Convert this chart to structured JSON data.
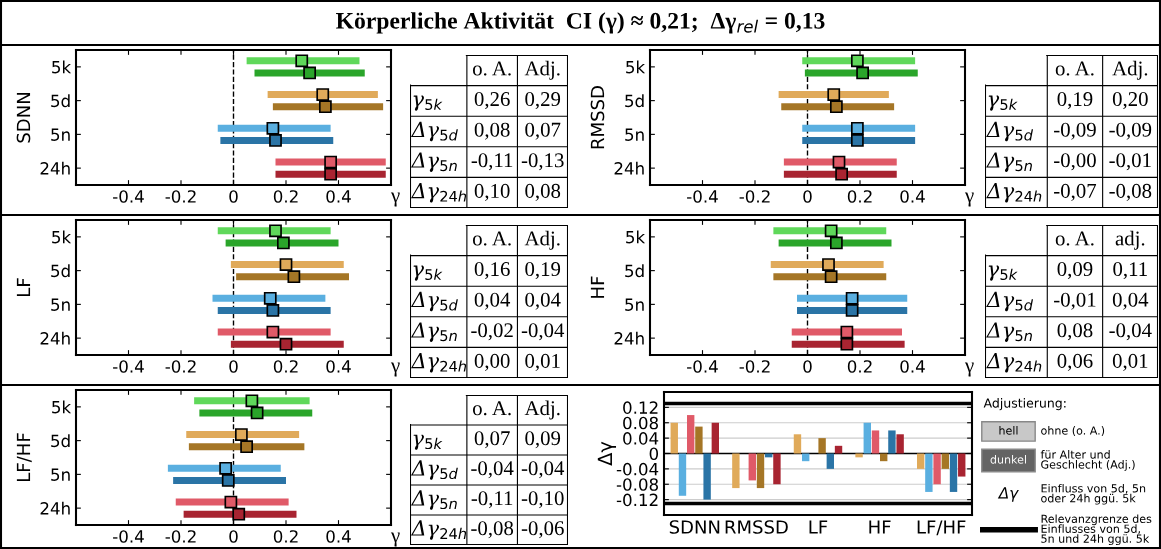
{
  "chart_data": [
    {
      "type": "scatter",
      "orientation": "horizontal",
      "title": "Körperliche Aktivität  CI (γ) ≈ 0,21;  Δγ$_{rel}$ = 0,13",
      "ylabel": "SDNN",
      "xlabel": "γ",
      "categories": [
        "5k",
        "5d",
        "5n",
        "24h"
      ],
      "xlim": [
        -0.6,
        0.6
      ],
      "xticks": [
        -0.4,
        -0.2,
        0,
        0.2,
        0.4
      ],
      "marker": "square",
      "ref_lines": [
        {
          "axis": "x",
          "value": 0,
          "line_style": "dashed",
          "color": "#000000"
        }
      ],
      "series": [
        {
          "colors": [
            "#5fd85a",
            "#e0aa5a",
            "#5aafe0",
            "#e05a68"
          ],
          "values": [
            0.26,
            0.34,
            0.15,
            0.37
          ],
          "errors": [
            [
              0.05,
              0.48
            ],
            [
              0.13,
              0.55
            ],
            [
              -0.06,
              0.37
            ],
            [
              0.16,
              0.58
            ]
          ]
        },
        {
          "colors": [
            "#2aa52a",
            "#a57626",
            "#2a74a6",
            "#a82431"
          ],
          "values": [
            0.29,
            0.35,
            0.16,
            0.37
          ],
          "errors": [
            [
              0.08,
              0.5
            ],
            [
              0.15,
              0.57
            ],
            [
              -0.05,
              0.38
            ],
            [
              0.16,
              0.58
            ]
          ]
        }
      ]
    },
    {
      "type": "other",
      "categories": [
        "o. A.",
        "Adj."
      ],
      "y_categories": [
        "γ$_{5k}$",
        "Δγ$_{5d}$",
        "Δγ$_{5n}$",
        "Δγ$_{24h}$"
      ],
      "cell_labels": [
        [
          "0,26",
          "0,29"
        ],
        [
          "0,08",
          "0,07"
        ],
        [
          "-0,11",
          "-0,13"
        ],
        [
          "0,10",
          "0,08"
        ]
      ]
    },
    {
      "type": "scatter",
      "orientation": "horizontal",
      "ylabel": "RMSSD",
      "xlabel": "γ",
      "categories": [
        "5k",
        "5d",
        "5n",
        "24h"
      ],
      "xlim": [
        -0.6,
        0.6
      ],
      "xticks": [
        -0.4,
        -0.2,
        0,
        0.2,
        0.4
      ],
      "marker": "square",
      "ref_lines": [
        {
          "axis": "x",
          "value": 0,
          "line_style": "dashed",
          "color": "#000000"
        }
      ],
      "series": [
        {
          "colors": [
            "#5fd85a",
            "#e0aa5a",
            "#5aafe0",
            "#e05a68"
          ],
          "values": [
            0.19,
            0.1,
            0.19,
            0.12
          ],
          "errors": [
            [
              -0.02,
              0.41
            ],
            [
              -0.11,
              0.31
            ],
            [
              -0.02,
              0.41
            ],
            [
              -0.09,
              0.34
            ]
          ]
        },
        {
          "colors": [
            "#2aa52a",
            "#a57626",
            "#2a74a6",
            "#a82431"
          ],
          "values": [
            0.21,
            0.11,
            0.19,
            0.13
          ],
          "errors": [
            [
              -0.01,
              0.42
            ],
            [
              -0.1,
              0.33
            ],
            [
              -0.02,
              0.41
            ],
            [
              -0.09,
              0.34
            ]
          ]
        }
      ]
    },
    {
      "type": "other",
      "categories": [
        "o. A.",
        "Adj."
      ],
      "y_categories": [
        "γ$_{5k}$",
        "Δγ$_{5d}$",
        "Δγ$_{5n}$",
        "Δγ$_{24h}$"
      ],
      "cell_labels": [
        [
          "0,19",
          "0,20"
        ],
        [
          "-0,09",
          "-0,09"
        ],
        [
          "-0,00",
          "-0,01"
        ],
        [
          "-0,07",
          "-0,08"
        ]
      ]
    },
    {
      "type": "scatter",
      "orientation": "horizontal",
      "ylabel": "LF",
      "xlabel": "γ",
      "categories": [
        "5k",
        "5d",
        "5n",
        "24h"
      ],
      "xlim": [
        -0.6,
        0.6
      ],
      "xticks": [
        -0.4,
        -0.2,
        0,
        0.2,
        0.4
      ],
      "marker": "square",
      "ref_lines": [
        {
          "axis": "x",
          "value": 0,
          "line_style": "dashed",
          "color": "#000000"
        }
      ],
      "series": [
        {
          "colors": [
            "#5fd85a",
            "#e0aa5a",
            "#5aafe0",
            "#e05a68"
          ],
          "values": [
            0.16,
            0.2,
            0.14,
            0.15
          ],
          "errors": [
            [
              -0.06,
              0.37
            ],
            [
              -0.01,
              0.42
            ],
            [
              -0.08,
              0.35
            ],
            [
              -0.06,
              0.37
            ]
          ]
        },
        {
          "colors": [
            "#2aa52a",
            "#a57626",
            "#2a74a6",
            "#a82431"
          ],
          "values": [
            0.19,
            0.23,
            0.15,
            0.2
          ],
          "errors": [
            [
              -0.03,
              0.4
            ],
            [
              0.01,
              0.44
            ],
            [
              -0.06,
              0.37
            ],
            [
              -0.01,
              0.42
            ]
          ]
        }
      ]
    },
    {
      "type": "other",
      "categories": [
        "o. A.",
        "Adj."
      ],
      "y_categories": [
        "γ$_{5k}$",
        "Δγ$_{5d}$",
        "Δγ$_{5n}$",
        "Δγ$_{24h}$"
      ],
      "cell_labels": [
        [
          "0,16",
          "0,19"
        ],
        [
          "0,04",
          "0,04"
        ],
        [
          "-0,02",
          "-0,04"
        ],
        [
          "0,00",
          "0,01"
        ]
      ]
    },
    {
      "type": "scatter",
      "orientation": "horizontal",
      "ylabel": "HF",
      "xlabel": "γ",
      "categories": [
        "5k",
        "5d",
        "5n",
        "24h"
      ],
      "xlim": [
        -0.6,
        0.6
      ],
      "xticks": [
        -0.4,
        -0.2,
        0,
        0.2,
        0.4
      ],
      "marker": "square",
      "ref_lines": [
        {
          "axis": "x",
          "value": 0,
          "line_style": "dashed",
          "color": "#000000"
        }
      ],
      "series": [
        {
          "colors": [
            "#5fd85a",
            "#e0aa5a",
            "#5aafe0",
            "#e05a68"
          ],
          "values": [
            0.09,
            0.08,
            0.17,
            0.15
          ],
          "errors": [
            [
              -0.13,
              0.3
            ],
            [
              -0.14,
              0.29
            ],
            [
              -0.04,
              0.38
            ],
            [
              -0.06,
              0.36
            ]
          ]
        },
        {
          "colors": [
            "#2aa52a",
            "#a57626",
            "#2a74a6",
            "#a82431"
          ],
          "values": [
            0.11,
            0.09,
            0.17,
            0.15
          ],
          "errors": [
            [
              -0.11,
              0.32
            ],
            [
              -0.13,
              0.3
            ],
            [
              -0.04,
              0.38
            ],
            [
              -0.06,
              0.37
            ]
          ]
        }
      ]
    },
    {
      "type": "other",
      "categories": [
        "o. A.",
        "adj."
      ],
      "y_categories": [
        "γ$_{5k}$",
        "Δγ$_{5d}$",
        "Δγ$_{5n}$",
        "Δγ$_{24h}$"
      ],
      "cell_labels": [
        [
          "0,09",
          "0,11"
        ],
        [
          "-0,01",
          "0,04"
        ],
        [
          "0,08",
          "-0,04"
        ],
        [
          "0,06",
          "0,01"
        ]
      ]
    },
    {
      "type": "scatter",
      "orientation": "horizontal",
      "ylabel": "LF/HF",
      "xlabel": "γ",
      "categories": [
        "5k",
        "5d",
        "5n",
        "24h"
      ],
      "xlim": [
        -0.6,
        0.6
      ],
      "xticks": [
        -0.4,
        -0.2,
        0,
        0.2,
        0.4
      ],
      "marker": "square",
      "ref_lines": [
        {
          "axis": "x",
          "value": 0,
          "line_style": "dashed",
          "color": "#000000"
        }
      ],
      "series": [
        {
          "colors": [
            "#5fd85a",
            "#e0aa5a",
            "#5aafe0",
            "#e05a68"
          ],
          "values": [
            0.07,
            0.03,
            -0.03,
            -0.01
          ],
          "errors": [
            [
              -0.15,
              0.29
            ],
            [
              -0.18,
              0.25
            ],
            [
              -0.25,
              0.18
            ],
            [
              -0.22,
              0.21
            ]
          ]
        },
        {
          "colors": [
            "#2aa52a",
            "#a57626",
            "#2a74a6",
            "#a82431"
          ],
          "values": [
            0.09,
            0.05,
            -0.02,
            0.02
          ],
          "errors": [
            [
              -0.13,
              0.3
            ],
            [
              -0.17,
              0.27
            ],
            [
              -0.23,
              0.2
            ],
            [
              -0.19,
              0.24
            ]
          ]
        }
      ]
    },
    {
      "type": "other",
      "categories": [
        "o. A.",
        "Adj."
      ],
      "y_categories": [
        "γ$_{5k}$",
        "Δγ$_{5d}$",
        "Δγ$_{5n}$",
        "Δγ$_{24h}$"
      ],
      "cell_labels": [
        [
          "0,07",
          "0,09"
        ],
        [
          "-0,04",
          "-0,04"
        ],
        [
          "-0,11",
          "-0,10"
        ],
        [
          "-0,08",
          "-0,06"
        ]
      ]
    },
    {
      "type": "bar",
      "ylabel": "Δγ",
      "categories": [
        "SDNN",
        "RMSSD",
        "LF",
        "HF",
        "LF/HF"
      ],
      "ylim": [
        -0.16,
        0.16
      ],
      "yticks": [
        -0.12,
        -0.08,
        -0.04,
        0,
        0.04,
        0.08,
        0.12
      ],
      "grid": "y",
      "ref_lines": [
        {
          "axis": "y",
          "value": 0.13,
          "color": "#000000"
        },
        {
          "axis": "y",
          "value": -0.13,
          "color": "#000000"
        }
      ],
      "series": [
        {
          "color": "#e0aa5a",
          "values": [
            0.08,
            -0.09,
            0.05,
            -0.01,
            -0.04
          ]
        },
        {
          "color": "#5aafe0",
          "values": [
            -0.11,
            0.0,
            -0.02,
            0.08,
            -0.1
          ]
        },
        {
          "color": "#e05a68",
          "values": [
            0.1,
            -0.07,
            0.0,
            0.06,
            -0.08
          ]
        },
        {
          "color": "#a57626",
          "values": [
            0.07,
            -0.09,
            0.04,
            -0.02,
            -0.04
          ]
        },
        {
          "color": "#2a74a6",
          "values": [
            -0.12,
            -0.01,
            -0.04,
            0.06,
            -0.1
          ]
        },
        {
          "color": "#a82431",
          "values": [
            0.08,
            -0.08,
            0.02,
            0.05,
            -0.06
          ]
        }
      ]
    },
    {
      "type": "other",
      "title": "Adjustierung:",
      "annotations": [
        "hell",
        "ohne (o. A.)",
        "dunkel",
        "für Alter und\nGeschlecht (Adj.)",
        "Δγ",
        "Einfluss von 5d, 5n\noder 24h ggü. 5k",
        "Relevanzgrenze des\nEinflusses von 5d,\n5n und 24h ggü. 5k"
      ]
    }
  ]
}
